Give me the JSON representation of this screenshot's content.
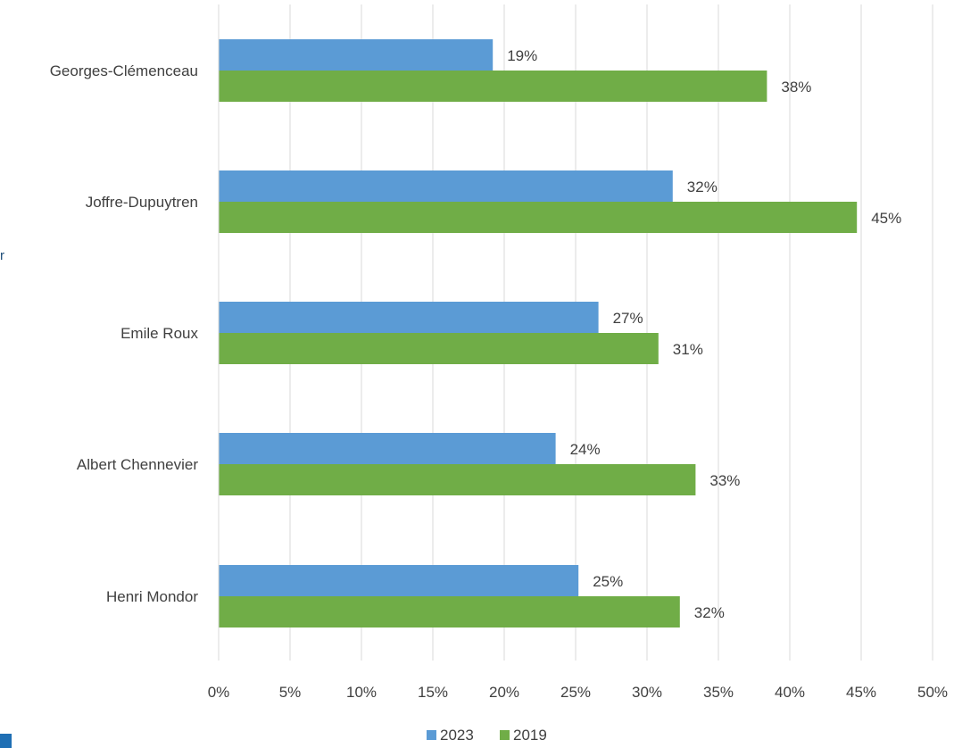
{
  "chart_data": {
    "type": "bar",
    "orientation": "horizontal",
    "categories": [
      "Georges-Clémenceau",
      "Joffre-Dupuytren",
      "Emile Roux",
      "Albert Chennevier",
      "Henri Mondor"
    ],
    "series": [
      {
        "name": "2023",
        "values": [
          19.2,
          31.8,
          26.6,
          23.6,
          25.2
        ],
        "labels": [
          "19%",
          "32%",
          "27%",
          "24%",
          "25%"
        ],
        "color": "#5b9bd5"
      },
      {
        "name": "2019",
        "values": [
          38.4,
          44.7,
          30.8,
          33.4,
          32.3
        ],
        "labels": [
          "38%",
          "45%",
          "31%",
          "33%",
          "32%"
        ],
        "color": "#70ad47"
      }
    ],
    "xlim": [
      0,
      50
    ],
    "xticks": [
      0,
      5,
      10,
      15,
      20,
      25,
      30,
      35,
      40,
      45,
      50
    ],
    "xtick_labels": [
      "0%",
      "5%",
      "10%",
      "15%",
      "20%",
      "25%",
      "30%",
      "35%",
      "40%",
      "45%",
      "50%"
    ],
    "grid": true,
    "legend": "bottom-center",
    "title": "",
    "xlabel": "",
    "ylabel": ""
  },
  "stray_text": "r"
}
